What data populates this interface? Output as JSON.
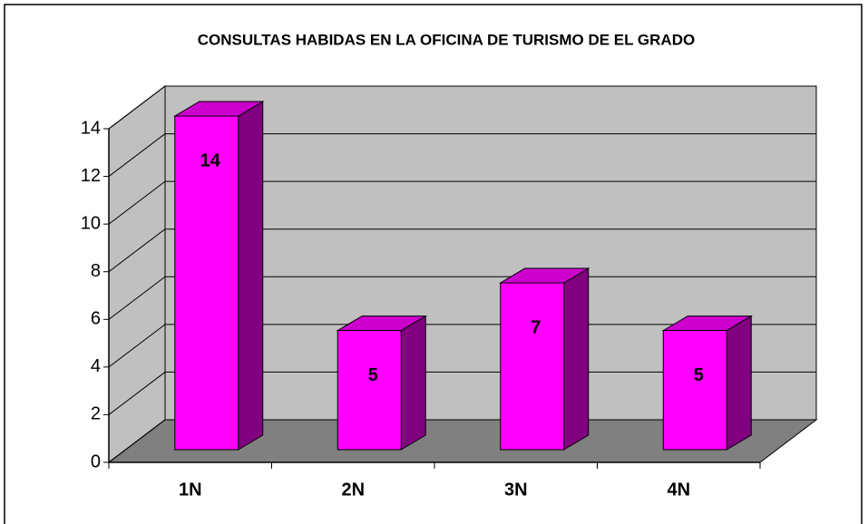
{
  "chart_data": {
    "type": "bar3d",
    "title": "CONSULTAS HABIDAS EN LA OFICINA DE TURISMO DE EL GRADO",
    "categories": [
      "1N",
      "2N",
      "3N",
      "4N"
    ],
    "values": [
      14,
      5,
      7,
      5
    ],
    "color": "#ff00ff",
    "ylim": [
      0,
      14
    ],
    "yticks": [
      0,
      2,
      4,
      6,
      8,
      10,
      12,
      14
    ],
    "grid": true
  }
}
